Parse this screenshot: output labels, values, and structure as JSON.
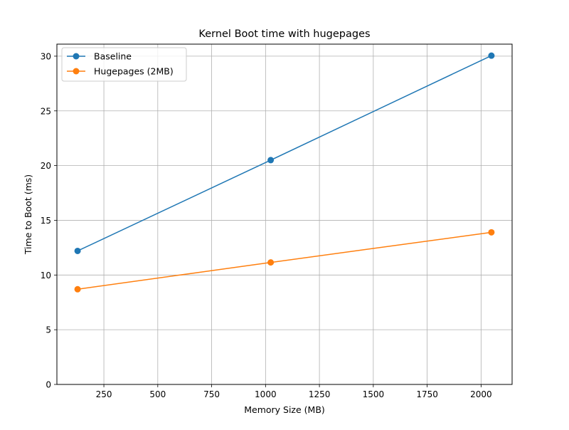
{
  "chart_data": {
    "type": "line",
    "title": "Kernel Boot time with hugepages",
    "xlabel": "Memory Size (MB)",
    "ylabel": "Time to Boot (ms)",
    "xlim": [
      32,
      2144
    ],
    "ylim": [
      0,
      31.1
    ],
    "xticks": [
      250,
      500,
      750,
      1000,
      1250,
      1500,
      1750,
      2000
    ],
    "yticks": [
      0,
      5,
      10,
      15,
      20,
      25,
      30
    ],
    "grid": true,
    "legend_position": "top-left",
    "series": [
      {
        "name": "Baseline",
        "color": "#1f77b4",
        "x": [
          128,
          1024,
          2048
        ],
        "y": [
          12.2,
          20.5,
          30.05
        ]
      },
      {
        "name": "Hugepages (2MB)",
        "color": "#ff7f0e",
        "x": [
          128,
          1024,
          2048
        ],
        "y": [
          8.7,
          11.15,
          13.9
        ]
      }
    ]
  }
}
